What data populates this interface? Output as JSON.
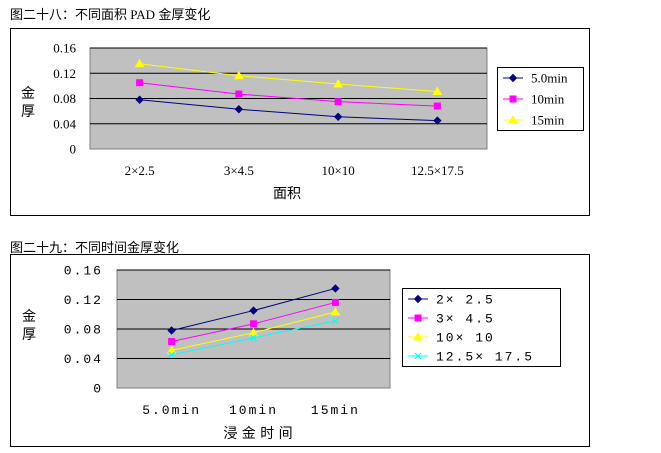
{
  "chart_data": [
    {
      "type": "line",
      "title": "图二十八：不同面积 PAD 金厚变化",
      "xlabel": "面积",
      "ylabel": "金厚",
      "categories": [
        "2×2.5",
        "3×4.5",
        "10×10",
        "12.5×17.5"
      ],
      "ylim": [
        0,
        0.16
      ],
      "yticks": [
        "0",
        "0.04",
        "0.08",
        "0.12",
        "0.16"
      ],
      "legend_position": "right",
      "grid": true,
      "series": [
        {
          "name": "5.0min",
          "values": [
            0.078,
            0.063,
            0.051,
            0.045
          ],
          "color": "#000080",
          "marker": "diamond"
        },
        {
          "name": "10min",
          "values": [
            0.105,
            0.087,
            0.075,
            0.068
          ],
          "color": "#ff00ff",
          "marker": "square"
        },
        {
          "name": "15min",
          "values": [
            0.135,
            0.116,
            0.103,
            0.091
          ],
          "color": "#ffff00",
          "marker": "triangle"
        }
      ]
    },
    {
      "type": "line",
      "title": "图二十九：不同时间金厚变化",
      "xlabel": "浸 金 时 间",
      "ylabel": "金 厚",
      "categories": [
        "5.0min",
        "10min",
        "15min"
      ],
      "ylim": [
        0,
        0.16
      ],
      "yticks": [
        "0",
        "0.04",
        "0.08",
        "0.12",
        "0.16"
      ],
      "legend_position": "right",
      "grid": true,
      "series": [
        {
          "name": "2× 2.5",
          "values": [
            0.078,
            0.105,
            0.135
          ],
          "color": "#000080",
          "marker": "diamond"
        },
        {
          "name": "3× 4.5",
          "values": [
            0.063,
            0.087,
            0.116
          ],
          "color": "#ff00ff",
          "marker": "square"
        },
        {
          "name": "10× 10",
          "values": [
            0.051,
            0.075,
            0.103
          ],
          "color": "#ffff00",
          "marker": "triangle"
        },
        {
          "name": "12.5× 17.5",
          "values": [
            0.045,
            0.068,
            0.091
          ],
          "color": "#00ffff",
          "marker": "x"
        }
      ]
    }
  ]
}
